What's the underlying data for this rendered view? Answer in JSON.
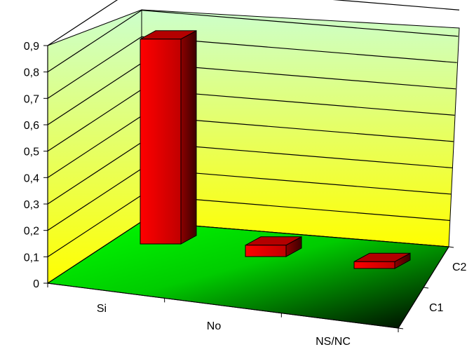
{
  "chart_data": {
    "type": "bar",
    "title": "",
    "xlabel": "",
    "ylabel": "",
    "categories": [
      "Si",
      "No",
      "NS/NC"
    ],
    "depth_categories": [
      "C1",
      "C2"
    ],
    "series": [
      {
        "values": [
          0.9,
          0.05,
          0.03
        ]
      }
    ],
    "ylim": [
      0,
      0.9
    ],
    "yticks": [
      "0",
      "0,1",
      "0,2",
      "0,3",
      "0,4",
      "0,5",
      "0,6",
      "0,7",
      "0,8",
      "0,9"
    ],
    "grid": true,
    "legend": "none",
    "colors": {
      "bar_front": "#ff0000",
      "bar_side": "#8b0000",
      "bar_top": "#b30000",
      "floor_light": "#00ff00",
      "floor_dark": "#000000",
      "wall_top": "#ccffcc",
      "wall_bottom": "#ffff00"
    }
  }
}
